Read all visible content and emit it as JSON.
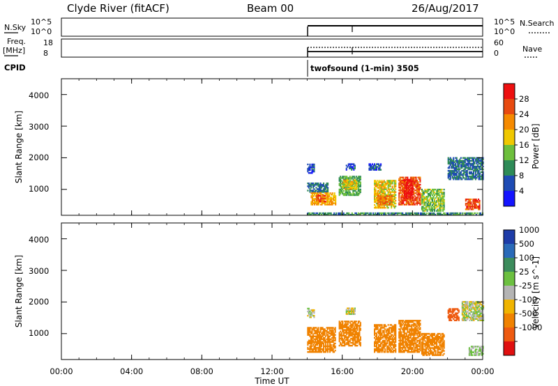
{
  "header": {
    "station": "Clyde River (fitACF)",
    "beam": "Beam 00",
    "date": "26/Aug/2017"
  },
  "side_labels": {
    "nsky": "N.Sky",
    "freq": "Freq.",
    "mhz": "[MHz]",
    "cpid": "CPID",
    "nsearch": "N.Search",
    "nave": "Nave"
  },
  "small_panels": {
    "noise_ticks_left": [
      "10^5",
      "10^0"
    ],
    "noise_ticks_right": [
      "10^5",
      "10^0"
    ],
    "freq_ticks_left": [
      "18",
      "8"
    ],
    "nave_ticks_right": [
      "60",
      "0"
    ],
    "cpid_text": "twofsound (1-min) 3505"
  },
  "x_axis": {
    "ticks": [
      "00:00",
      "04:00",
      "08:00",
      "12:00",
      "16:00",
      "20:00",
      "00:00"
    ],
    "label": "Time UT"
  },
  "y_axis": {
    "label": "Slant Range [km]",
    "ticks": [
      "1000",
      "2000",
      "3000",
      "4000"
    ]
  },
  "power_colorbar": {
    "label": "Power [dB]",
    "tick_labels": [
      "4",
      "8",
      "12",
      "16",
      "20",
      "24",
      "28"
    ],
    "colors": [
      "#1414ff",
      "#1e4bb4",
      "#2e8b57",
      "#6dbf3c",
      "#f0c800",
      "#f58a00",
      "#e84a10",
      "#ee1010"
    ]
  },
  "velocity_colorbar": {
    "label": "Velocity [m s^-1]",
    "tick_labels": [
      "1000",
      "500",
      "100",
      "25",
      "-25",
      "-100",
      "-500",
      "-1000"
    ],
    "colors": [
      "#1e3ca8",
      "#2a6ab8",
      "#3c8c5c",
      "#6cc040",
      "#b4b4b4",
      "#f0b400",
      "#f08200",
      "#ee5a10",
      "#e01010"
    ]
  },
  "chart_data": [
    {
      "type": "heatmap",
      "panel": "power",
      "x_unit": "hours UT",
      "y_unit": "km",
      "xlim": [
        0,
        24
      ],
      "ylim": [
        180,
        4500
      ],
      "xticks": [
        0,
        4,
        8,
        12,
        16,
        20,
        24
      ],
      "yticks": [
        1000,
        2000,
        3000,
        4000
      ],
      "data_start_hour": 14.0,
      "regions": [
        {
          "t0": 14.0,
          "t1": 14.4,
          "r0": 1500,
          "r1": 1800,
          "v": 6
        },
        {
          "t0": 14.0,
          "t1": 15.2,
          "r0": 900,
          "r1": 1200,
          "v": 8
        },
        {
          "t0": 14.2,
          "t1": 15.6,
          "r0": 500,
          "r1": 900,
          "v": 20
        },
        {
          "t0": 14.5,
          "t1": 15.0,
          "r0": 600,
          "r1": 800,
          "v": 26
        },
        {
          "t0": 15.8,
          "t1": 17.0,
          "r0": 800,
          "r1": 1400,
          "v": 12
        },
        {
          "t0": 16.0,
          "t1": 16.8,
          "r0": 1000,
          "r1": 1300,
          "v": 18
        },
        {
          "t0": 16.2,
          "t1": 16.7,
          "r0": 1600,
          "r1": 1800,
          "v": 6
        },
        {
          "t0": 17.5,
          "t1": 18.2,
          "r0": 1600,
          "r1": 1800,
          "v": 6
        },
        {
          "t0": 17.8,
          "t1": 19.0,
          "r0": 400,
          "r1": 1300,
          "v": 18
        },
        {
          "t0": 18.0,
          "t1": 18.8,
          "r0": 500,
          "r1": 800,
          "v": 24
        },
        {
          "t0": 19.2,
          "t1": 20.4,
          "r0": 500,
          "r1": 1400,
          "v": 26
        },
        {
          "t0": 19.5,
          "t1": 20.0,
          "r0": 700,
          "r1": 1300,
          "v": 30
        },
        {
          "t0": 20.5,
          "t1": 21.8,
          "r0": 300,
          "r1": 1000,
          "v": 14
        },
        {
          "t0": 22.0,
          "t1": 24.0,
          "r0": 1300,
          "r1": 2000,
          "v": 8
        },
        {
          "t0": 23.0,
          "t1": 23.8,
          "r0": 350,
          "r1": 700,
          "v": 26
        },
        {
          "t0": 14.0,
          "t1": 24.0,
          "r0": 180,
          "r1": 250,
          "v": 10
        }
      ]
    },
    {
      "type": "heatmap",
      "panel": "velocity",
      "x_unit": "hours UT",
      "y_unit": "km",
      "xlim": [
        0,
        24
      ],
      "ylim": [
        180,
        4500
      ],
      "xticks": [
        0,
        4,
        8,
        12,
        16,
        20,
        24
      ],
      "yticks": [
        1000,
        2000,
        3000,
        4000
      ],
      "data_start_hour": 14.0,
      "regions": [
        {
          "t0": 14.0,
          "t1": 14.4,
          "r0": 1500,
          "r1": 1800,
          "v": 0
        },
        {
          "t0": 14.0,
          "t1": 15.6,
          "r0": 400,
          "r1": 1200,
          "v": -300
        },
        {
          "t0": 15.8,
          "t1": 17.0,
          "r0": 600,
          "r1": 1400,
          "v": -200
        },
        {
          "t0": 16.2,
          "t1": 16.7,
          "r0": 1600,
          "r1": 1800,
          "v": 0
        },
        {
          "t0": 17.8,
          "t1": 19.0,
          "r0": 400,
          "r1": 1300,
          "v": -300
        },
        {
          "t0": 19.2,
          "t1": 20.4,
          "r0": 400,
          "r1": 1400,
          "v": -400
        },
        {
          "t0": 20.5,
          "t1": 21.8,
          "r0": 300,
          "r1": 1000,
          "v": -200
        },
        {
          "t0": 22.0,
          "t1": 22.6,
          "r0": 1400,
          "r1": 1800,
          "v": -600
        },
        {
          "t0": 22.8,
          "t1": 24.0,
          "r0": 1400,
          "r1": 2000,
          "v": 0
        },
        {
          "t0": 23.2,
          "t1": 24.0,
          "r0": 300,
          "r1": 600,
          "v": 40
        }
      ]
    }
  ]
}
